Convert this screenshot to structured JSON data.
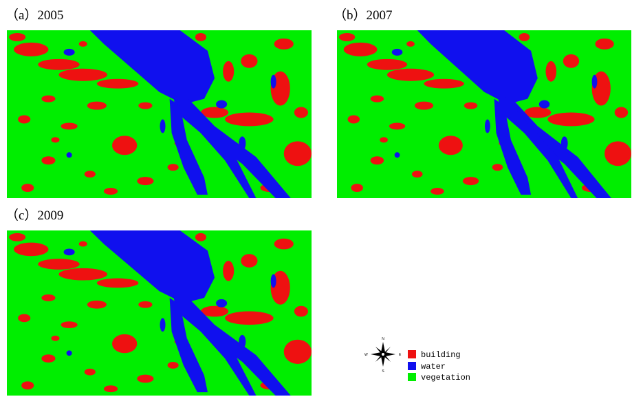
{
  "panels": [
    {
      "label": "（a）2005"
    },
    {
      "label": "（b）2007"
    },
    {
      "label": "（c）2009"
    }
  ],
  "legend": {
    "items": [
      "building",
      "water",
      "vegetation"
    ]
  },
  "compass": {
    "north": "N",
    "south": "S",
    "east": "E",
    "west": "W"
  }
}
